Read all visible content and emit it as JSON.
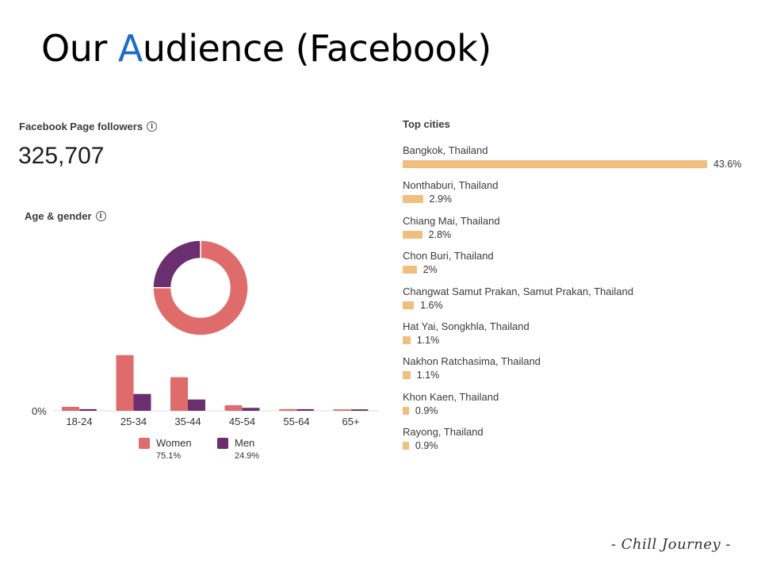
{
  "slide": {
    "title_first": "Our ",
    "title_accent": "A",
    "title_rest": "udience (Facebook)",
    "logo_text": "- Chill Journey -"
  },
  "followers": {
    "label": "Facebook Page followers",
    "count": "325,707"
  },
  "age_gender": {
    "label": "Age & gender",
    "info_icon": "i"
  },
  "colors": {
    "women": "#e06b6b",
    "men": "#6b2e6f",
    "city_bar": "#f0be7d"
  },
  "chart_data": [
    {
      "type": "pie",
      "variant": "donut",
      "slices": [
        {
          "name": "Women",
          "value": 75.1
        },
        {
          "name": "Men",
          "value": 24.9
        }
      ]
    },
    {
      "type": "bar",
      "categories": [
        "18-24",
        "25-34",
        "35-44",
        "45-54",
        "55-64",
        "65+"
      ],
      "series": [
        {
          "name": "Women",
          "values": [
            2.6,
            37.0,
            22.3,
            3.7,
            1.1,
            1.0
          ]
        },
        {
          "name": "Men",
          "values": [
            1.1,
            11.2,
            7.5,
            2.0,
            1.1,
            1.0
          ]
        }
      ],
      "y_tick_label": "0%",
      "ylim": [
        0,
        40
      ],
      "legend": [
        {
          "name": "Women",
          "pct": "75.1%"
        },
        {
          "name": "Men",
          "pct": "24.9%"
        }
      ],
      "legend_position": "bottom"
    },
    {
      "type": "bar",
      "orientation": "horizontal",
      "title": "Top cities",
      "categories": [
        "Bangkok, Thailand",
        "Nonthaburi, Thailand",
        "Chiang Mai, Thailand",
        "Chon Buri, Thailand",
        "Changwat Samut Prakan, Samut Prakan, Thailand",
        "Hat Yai, Songkhla, Thailand",
        "Nakhon Ratchasima, Thailand",
        "Khon Kaen, Thailand",
        "Rayong, Thailand"
      ],
      "values": [
        43.6,
        2.9,
        2.8,
        2.0,
        1.6,
        1.1,
        1.1,
        0.9,
        0.9
      ],
      "value_labels": [
        "43.6%",
        "2.9%",
        "2.8%",
        "2%",
        "1.6%",
        "1.1%",
        "1.1%",
        "0.9%",
        "0.9%"
      ]
    }
  ]
}
